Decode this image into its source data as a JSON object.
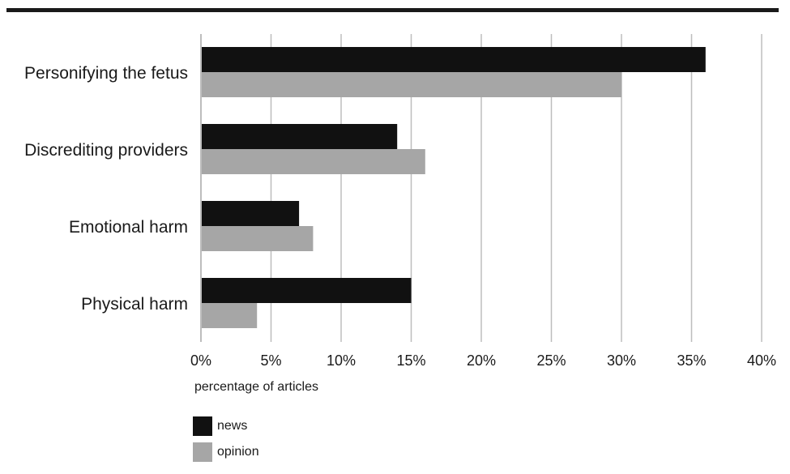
{
  "chart_data": {
    "type": "bar",
    "orientation": "horizontal",
    "categories": [
      "Personifying the fetus",
      "Discrediting providers",
      "Emotional harm",
      "Physical harm"
    ],
    "series": [
      {
        "name": "news",
        "values": [
          36,
          14,
          7,
          15
        ],
        "color": "#111111"
      },
      {
        "name": "opinion",
        "values": [
          30,
          16,
          8,
          4
        ],
        "color": "#a6a6a6"
      }
    ],
    "xlabel": "percentage of articles",
    "ylabel": "",
    "xlim": [
      0,
      40
    ],
    "xticks": [
      "0%",
      "5%",
      "10%",
      "15%",
      "20%",
      "25%",
      "30%",
      "35%",
      "40%"
    ],
    "grid": "vertical",
    "legend": "bottom-left"
  }
}
